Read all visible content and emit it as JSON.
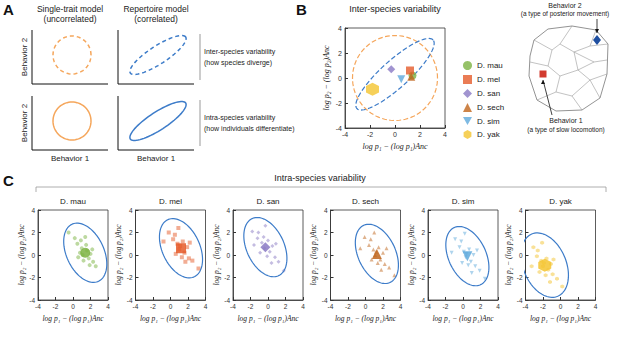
{
  "panel_labels": [
    "A",
    "B",
    "C"
  ],
  "panel_a": {
    "columns": [
      {
        "title": "Single-trait model",
        "subtitle": "(uncorrelated)",
        "color": "#f5a65b"
      },
      {
        "title": "Repertoire model",
        "subtitle": "(correlated)",
        "color": "#3d7cc9"
      }
    ],
    "rows": [
      {
        "title": "Inter-species variability",
        "subtitle": "(how species diverge)",
        "line_style": "dashed"
      },
      {
        "title": "Intra-species variability",
        "subtitle": "(how individuals differentiate)",
        "line_style": "solid"
      }
    ],
    "x_label": "Behavior 1",
    "y_label": "Behavior 2"
  },
  "behavior_map": {
    "behaviors": [
      {
        "name": "Behavior 2",
        "description": "(a type of posterior movement)",
        "color": "#1f4fa0",
        "marker": "diamond"
      },
      {
        "name": "Behavior 1",
        "description": "(a type of slow locomotion)",
        "color": "#d23b2f",
        "marker": "square"
      }
    ]
  },
  "panel_c": {
    "title": "Intra-species variability"
  },
  "chart_data": [
    {
      "type": "scatter",
      "title": "Inter-species variability",
      "xlabel": "log p₁ − (log p₁)Anc",
      "ylabel": "log p₂ − (log p₂)Anc",
      "xlim": [
        -4,
        4
      ],
      "ylim": [
        -4,
        4
      ],
      "xticks": [
        -4,
        -2,
        0,
        2,
        4
      ],
      "yticks": [
        -4,
        -2,
        0,
        2,
        4
      ],
      "grid": false,
      "legend": "right",
      "series": [
        {
          "name": "D. mau",
          "color": "#7cb342",
          "marker": "circle",
          "x": [
            1.4
          ],
          "values": [
            0.2
          ]
        },
        {
          "name": "D. mel",
          "color": "#e55b2a",
          "marker": "square",
          "x": [
            1.2
          ],
          "values": [
            0.6
          ]
        },
        {
          "name": "D. san",
          "color": "#8a79c4",
          "marker": "diamond",
          "x": [
            -0.3
          ],
          "values": [
            0.7
          ]
        },
        {
          "name": "D. sech",
          "color": "#c0651c",
          "marker": "triangle",
          "x": [
            1.3
          ],
          "values": [
            0.1
          ]
        },
        {
          "name": "D. sim",
          "color": "#5ea9dc",
          "marker": "triangle-down",
          "x": [
            0.5
          ],
          "values": [
            -0.1
          ]
        },
        {
          "name": "D. yak",
          "color": "#f4c430",
          "marker": "hexagon",
          "x": [
            -1.8
          ],
          "values": [
            -0.9
          ]
        }
      ],
      "ellipses": [
        {
          "center": [
            0,
            0
          ],
          "semi_axes": [
            3.4,
            3.4
          ],
          "angle": 0,
          "color": "#f5a65b",
          "line_style": "dashed"
        },
        {
          "center": [
            0,
            0.3
          ],
          "semi_axes": [
            4.1,
            1.1
          ],
          "angle": 42,
          "color": "#3d7cc9",
          "line_style": "dashed"
        }
      ]
    },
    {
      "type": "scatter",
      "title": "D. mau",
      "xlabel": "log p₁ − (log p₁)Anc",
      "ylabel": "log p₂ − (log p₂)Anc",
      "xlim": [
        -4,
        4
      ],
      "ylim": [
        -4,
        4
      ],
      "xticks": [
        -4,
        -2,
        0,
        2,
        4
      ],
      "yticks": [
        -4,
        -2,
        0,
        2,
        4
      ],
      "series": [
        {
          "color": "#7cb342",
          "marker": "circle",
          "x": [
            0.5,
            1.0,
            1.8,
            2.3,
            0.8,
            1.5,
            2.0,
            1.2,
            0.2,
            2.6,
            1.6,
            0.9,
            1.9,
            1.1,
            2.2,
            0.6,
            1.4,
            -0.5
          ],
          "values": [
            1.0,
            0.6,
            -0.3,
            -0.6,
            0.2,
            0.9,
            0.1,
            -0.5,
            1.5,
            -1.0,
            0.4,
            1.3,
            -0.9,
            0.0,
            0.5,
            -0.2,
            1.6,
            2.0
          ]
        }
      ],
      "mean": [
        1.4,
        0.2
      ],
      "ellipses": [
        {
          "center": [
            1.4,
            0.2
          ],
          "semi_axes": [
            3.0,
            2.0
          ],
          "angle": -50,
          "color": "#3d7cc9",
          "line_style": "solid"
        }
      ]
    },
    {
      "type": "scatter",
      "title": "D. mel",
      "xlabel": "log p₁ − (log p₁)Anc",
      "ylabel": "log p₂ − (log p₂)Anc",
      "xlim": [
        -4,
        4
      ],
      "ylim": [
        -4,
        4
      ],
      "xticks": [
        -4,
        -2,
        0,
        2,
        4
      ],
      "yticks": [
        -4,
        -2,
        0,
        2,
        4
      ],
      "series": [
        {
          "color": "#e55b2a",
          "marker": "square",
          "x": [
            0.3,
            0.8,
            1.6,
            2.1,
            1.0,
            1.4,
            1.9,
            0.6,
            -0.2,
            2.5,
            1.3,
            0.5,
            1.7,
            1.1,
            2.2,
            -0.8,
            3.2,
            0.9
          ],
          "values": [
            1.4,
            1.0,
            0.2,
            -0.3,
            0.5,
            1.2,
            0.7,
            0.1,
            2.0,
            -0.5,
            -0.2,
            1.8,
            -0.6,
            0.8,
            1.1,
            1.2,
            -1.2,
            2.4
          ]
        }
      ],
      "mean": [
        1.2,
        0.6
      ],
      "ellipses": [
        {
          "center": [
            1.2,
            0.6
          ],
          "semi_axes": [
            3.0,
            2.0
          ],
          "angle": -50,
          "color": "#3d7cc9",
          "line_style": "solid"
        }
      ]
    },
    {
      "type": "scatter",
      "title": "D. san",
      "xlabel": "log p₁ − (log p₁)Anc",
      "ylabel": "log p₂ − (log p₂)Anc",
      "xlim": [
        -4,
        4
      ],
      "ylim": [
        -4,
        4
      ],
      "xticks": [
        -4,
        -2,
        0,
        2,
        4
      ],
      "yticks": [
        -4,
        -2,
        0,
        2,
        4
      ],
      "series": [
        {
          "color": "#8a79c4",
          "marker": "diamond",
          "x": [
            -1.2,
            -0.7,
            0.2,
            0.8,
            -0.4,
            0.0,
            0.5,
            -0.9,
            -1.8,
            1.2,
            -0.1,
            -1.1,
            0.4,
            -0.5,
            0.9,
            -1.6,
            1.8,
            -0.3
          ],
          "values": [
            1.5,
            1.1,
            0.3,
            -0.2,
            0.6,
            1.3,
            0.8,
            0.2,
            2.1,
            -0.6,
            -0.1,
            2.0,
            -0.7,
            1.6,
            1.0,
            0.9,
            -1.4,
            2.6
          ]
        }
      ],
      "mean": [
        -0.3,
        0.7
      ],
      "ellipses": [
        {
          "center": [
            -0.3,
            0.7
          ],
          "semi_axes": [
            3.0,
            2.0
          ],
          "angle": -50,
          "color": "#3d7cc9",
          "line_style": "solid"
        }
      ]
    },
    {
      "type": "scatter",
      "title": "D. sech",
      "xlabel": "log p₁ − (log p₁)Anc",
      "ylabel": "log p₂ − (log p₂)Anc",
      "xlim": [
        -4,
        4
      ],
      "ylim": [
        -4,
        4
      ],
      "xticks": [
        -4,
        -2,
        0,
        2,
        4
      ],
      "yticks": [
        -4,
        -2,
        0,
        2,
        4
      ],
      "series": [
        {
          "color": "#c0651c",
          "marker": "triangle",
          "x": [
            0.4,
            0.9,
            1.7,
            2.2,
            1.1,
            1.5,
            2.0,
            0.7,
            -0.1,
            2.7,
            1.4,
            0.6,
            1.8,
            1.2,
            2.4,
            -0.6,
            3.3,
            1.0
          ],
          "values": [
            0.9,
            0.5,
            -0.4,
            -0.8,
            0.0,
            0.7,
            0.2,
            -0.4,
            1.6,
            -1.1,
            -0.7,
            1.4,
            -1.3,
            0.3,
            0.6,
            0.6,
            -1.8,
            2.0
          ]
        }
      ],
      "mean": [
        1.3,
        0.1
      ],
      "ellipses": [
        {
          "center": [
            1.3,
            0.1
          ],
          "semi_axes": [
            3.0,
            2.0
          ],
          "angle": -50,
          "color": "#3d7cc9",
          "line_style": "solid"
        }
      ]
    },
    {
      "type": "scatter",
      "title": "D. sim",
      "xlabel": "log p₁ − (log p₁)Anc",
      "ylabel": "log p₂ − (log p₂)Anc",
      "xlim": [
        -4,
        4
      ],
      "ylim": [
        -4,
        4
      ],
      "xticks": [
        -4,
        -2,
        0,
        2,
        4
      ],
      "yticks": [
        -4,
        -2,
        0,
        2,
        4
      ],
      "series": [
        {
          "color": "#5ea9dc",
          "marker": "triangle-down",
          "x": [
            -0.4,
            0.1,
            0.9,
            1.4,
            0.3,
            0.7,
            1.2,
            -0.1,
            -0.9,
            1.9,
            0.6,
            -0.2,
            1.0,
            0.4,
            1.6,
            -1.3,
            2.5,
            0.2
          ],
          "values": [
            0.7,
            0.3,
            -0.6,
            -1.0,
            -0.2,
            0.5,
            0.0,
            -0.7,
            1.4,
            -1.4,
            -0.9,
            1.2,
            -1.6,
            0.1,
            0.4,
            0.2,
            -2.1,
            1.9
          ]
        }
      ],
      "mean": [
        0.5,
        -0.1
      ],
      "ellipses": [
        {
          "center": [
            0.5,
            -0.1
          ],
          "semi_axes": [
            3.0,
            2.0
          ],
          "angle": -50,
          "color": "#3d7cc9",
          "line_style": "solid"
        }
      ]
    },
    {
      "type": "scatter",
      "title": "D. yak",
      "xlabel": "log p₁ − (log p₁)Anc",
      "ylabel": "log p₂ − (log p₂)Anc",
      "xlim": [
        -4,
        4
      ],
      "ylim": [
        -4,
        4
      ],
      "xticks": [
        -4,
        -2,
        0,
        2,
        4
      ],
      "yticks": [
        -4,
        -2,
        0,
        2,
        4
      ],
      "series": [
        {
          "color": "#f4c430",
          "marker": "hexagon",
          "x": [
            -2.7,
            -2.2,
            -1.4,
            -0.9,
            -2.0,
            -1.6,
            -1.1,
            -2.4,
            -3.1,
            -0.4,
            -1.7,
            -2.6,
            -1.2,
            -1.9,
            -0.8,
            -3.3,
            0.2,
            -2.1
          ],
          "values": [
            -0.1,
            -0.5,
            -1.3,
            -1.7,
            -1.0,
            -0.3,
            -0.8,
            -1.5,
            0.7,
            -2.1,
            -1.8,
            0.4,
            -2.4,
            -0.7,
            -0.4,
            -1.0,
            -2.8,
            1.1
          ]
        }
      ],
      "mean": [
        -1.8,
        -0.9
      ],
      "ellipses": [
        {
          "center": [
            -1.8,
            -0.9
          ],
          "semi_axes": [
            3.2,
            2.3
          ],
          "angle": -50,
          "color": "#3d7cc9",
          "line_style": "solid"
        }
      ]
    }
  ]
}
